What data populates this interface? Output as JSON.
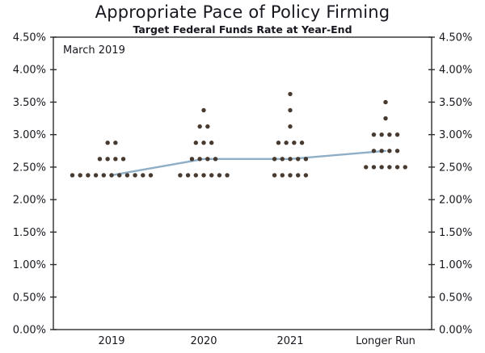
{
  "title": "Appropriate Pace of Policy Firming",
  "subtitle": "Target Federal Funds Rate at Year-End",
  "annotation": "March 2019",
  "colors": {
    "dot": "#473a31",
    "median_line": "#8eafc7",
    "text": "#17171f",
    "axis": "#2e2e2e",
    "background": "#ffffff"
  },
  "chart_data": {
    "type": "scatter",
    "variant": "fomc-dot-plot",
    "title": "Appropriate Pace of Policy Firming",
    "subtitle": "Target Federal Funds Rate at Year-End",
    "annotation": "March 2019",
    "categories": [
      "2019",
      "2020",
      "2021",
      "Longer Run"
    ],
    "y_axis": {
      "min": 0,
      "max": 4.5,
      "tick_step": 0.5,
      "unit": "percent",
      "label_sides": [
        "left",
        "right"
      ],
      "grid": false,
      "ticks": [
        {
          "value": 4.5,
          "label": "4.50%"
        },
        {
          "value": 4.0,
          "label": "4.00%"
        },
        {
          "value": 3.5,
          "label": "3.50%"
        },
        {
          "value": 3.0,
          "label": "3.00%"
        },
        {
          "value": 2.5,
          "label": "2.50%"
        },
        {
          "value": 2.0,
          "label": "2.00%"
        },
        {
          "value": 1.5,
          "label": "1.50%"
        },
        {
          "value": 1.0,
          "label": "1.00%"
        },
        {
          "value": 0.5,
          "label": "0.50%"
        },
        {
          "value": 0.0,
          "label": "0.00%"
        }
      ]
    },
    "median_line": {
      "values": [
        2.375,
        2.625,
        2.625,
        2.75
      ]
    },
    "dot_distributions": [
      {
        "category": "2019",
        "dots": [
          {
            "rate": 2.375,
            "count": 11
          },
          {
            "rate": 2.625,
            "count": 4
          },
          {
            "rate": 2.875,
            "count": 2
          }
        ]
      },
      {
        "category": "2020",
        "dots": [
          {
            "rate": 2.375,
            "count": 7
          },
          {
            "rate": 2.625,
            "count": 4
          },
          {
            "rate": 2.875,
            "count": 3
          },
          {
            "rate": 3.125,
            "count": 2
          },
          {
            "rate": 3.375,
            "count": 1
          }
        ]
      },
      {
        "category": "2021",
        "dots": [
          {
            "rate": 2.375,
            "count": 5
          },
          {
            "rate": 2.625,
            "count": 5
          },
          {
            "rate": 2.875,
            "count": 4
          },
          {
            "rate": 3.125,
            "count": 1
          },
          {
            "rate": 3.375,
            "count": 1
          },
          {
            "rate": 3.625,
            "count": 1
          }
        ]
      },
      {
        "category": "Longer Run",
        "dots": [
          {
            "rate": 2.5,
            "count": 6
          },
          {
            "rate": 2.75,
            "count": 4
          },
          {
            "rate": 3.0,
            "count": 4
          },
          {
            "rate": 3.25,
            "count": 1
          },
          {
            "rate": 3.5,
            "count": 1
          }
        ]
      }
    ]
  }
}
